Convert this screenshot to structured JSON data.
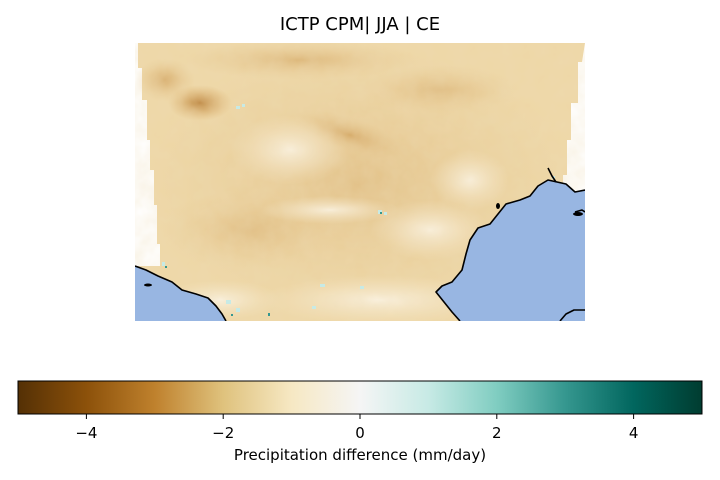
{
  "figure": {
    "title": "ICTP CPM| JJA | CE"
  },
  "map": {
    "colormap": "BrBG",
    "ocean_color": "#98b6e2",
    "coastline_color": "#000000",
    "description_colors": {
      "dry_strong": "#8c510a",
      "dry_medium": "#d8a55a",
      "dry_light": "#f0dbae",
      "neutral": "#f5f0e6",
      "wet_light": "#c7eae5",
      "wet_strong": "#01665e"
    }
  },
  "colorbar": {
    "label": "Precipitation difference (mm/day)",
    "vmin": -5,
    "vmax": 5,
    "ticks": [
      {
        "value": -4,
        "label": "−4"
      },
      {
        "value": -2,
        "label": "−2"
      },
      {
        "value": 0,
        "label": "0"
      },
      {
        "value": 2,
        "label": "2"
      },
      {
        "value": 4,
        "label": "4"
      }
    ],
    "stops": [
      "#543005",
      "#8c510a",
      "#bf812d",
      "#dfc27d",
      "#f6e8c3",
      "#f5f5f5",
      "#c7eae5",
      "#80cdc1",
      "#35978f",
      "#01665e",
      "#003c30"
    ]
  }
}
